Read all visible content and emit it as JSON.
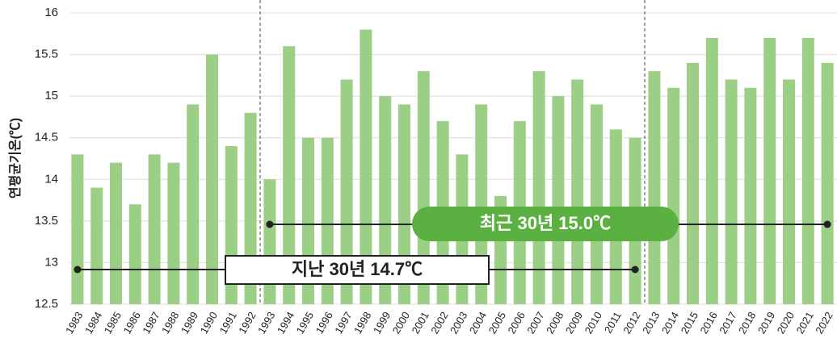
{
  "chart_data": {
    "type": "bar",
    "y_label": "연평균기온(℃)",
    "categories": [
      "1983",
      "1984",
      "1985",
      "1986",
      "1987",
      "1988",
      "1989",
      "1990",
      "1991",
      "1992",
      "1993",
      "1994",
      "1995",
      "1996",
      "1997",
      "1998",
      "1999",
      "2000",
      "2001",
      "2002",
      "2003",
      "2004",
      "2005",
      "2006",
      "2007",
      "2008",
      "2009",
      "2010",
      "2011",
      "2012",
      "2013",
      "2014",
      "2015",
      "2016",
      "2017",
      "2018",
      "2019",
      "2020",
      "2021",
      "2022"
    ],
    "values": [
      14.3,
      13.9,
      14.2,
      13.7,
      14.3,
      14.2,
      14.9,
      15.5,
      14.4,
      14.8,
      14.0,
      15.6,
      14.5,
      14.5,
      15.2,
      15.8,
      15.0,
      14.9,
      15.3,
      14.7,
      14.3,
      14.9,
      13.8,
      14.7,
      15.3,
      15.0,
      15.2,
      14.9,
      14.6,
      14.5,
      15.3,
      15.1,
      15.4,
      15.7,
      15.2,
      15.1,
      15.7,
      15.2,
      15.7,
      15.4
    ],
    "color": "#9ccf86",
    "ylim": [
      12.5,
      16
    ],
    "yticks": [
      12.5,
      13,
      13.5,
      14,
      14.5,
      15,
      15.5,
      16
    ],
    "grid": true,
    "annotations": [
      {
        "text": "지난 30년 14.7℃"
      },
      {
        "text": "최근 30년 15.0℃"
      }
    ]
  }
}
